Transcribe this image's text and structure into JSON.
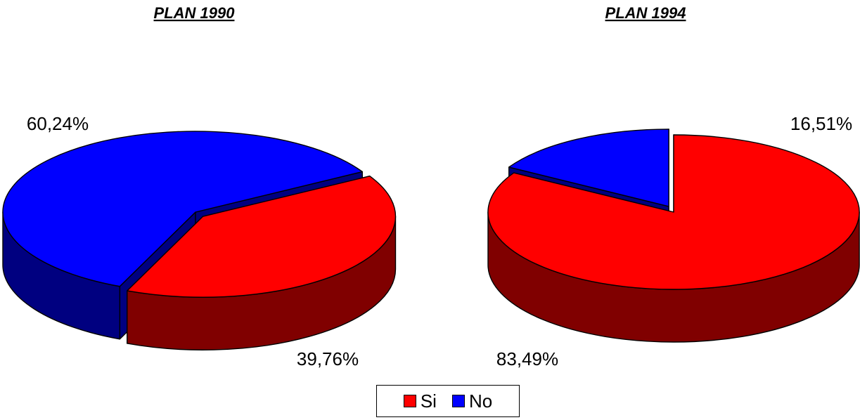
{
  "chart_data": [
    {
      "type": "pie",
      "title": "PLAN 1990",
      "slices": [
        {
          "name": "Si",
          "value": 39.76,
          "label": "39,76%",
          "color": "#ff0000",
          "side": "#800000",
          "exploded": true
        },
        {
          "name": "No",
          "value": 60.24,
          "label": "60,24%",
          "color": "#0000ff",
          "side": "#000080",
          "exploded": false
        }
      ]
    },
    {
      "type": "pie",
      "title": "PLAN 1994",
      "slices": [
        {
          "name": "Si",
          "value": 83.49,
          "label": "83,49%",
          "color": "#ff0000",
          "side": "#800000",
          "exploded": false
        },
        {
          "name": "No",
          "value": 16.51,
          "label": "16,51%",
          "color": "#0000ff",
          "side": "#000080",
          "exploded": true
        }
      ]
    }
  ],
  "legend": {
    "items": [
      {
        "name": "Si",
        "color": "#ff0000"
      },
      {
        "name": "No",
        "color": "#0000ff"
      }
    ]
  }
}
